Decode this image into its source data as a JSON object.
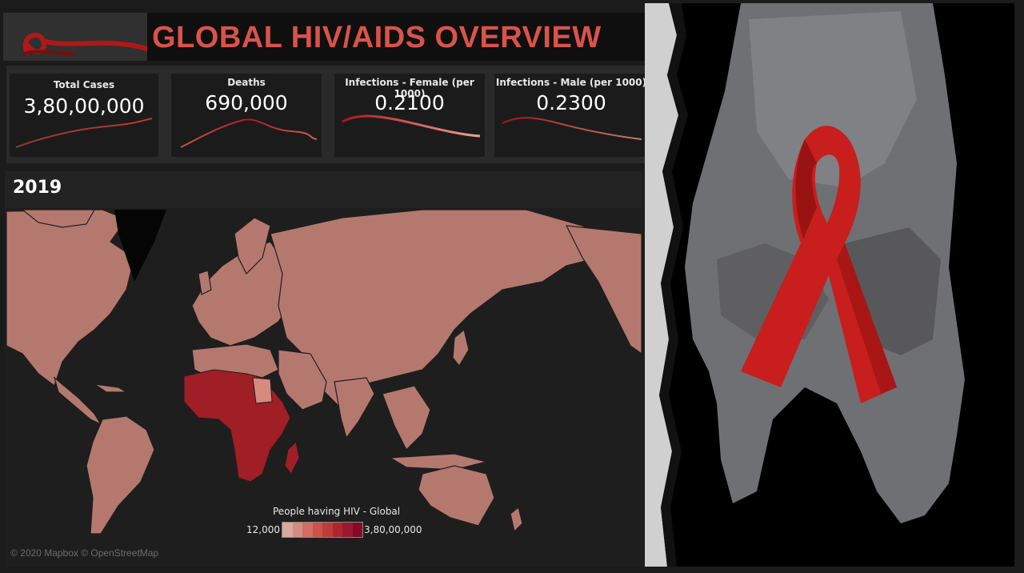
{
  "header": {
    "title": "GLOBAL HIV/AIDS OVERVIEW"
  },
  "kpis": [
    {
      "label": "Total Cases",
      "value": "3,80,00,000"
    },
    {
      "label": "Deaths",
      "value": "690,000"
    },
    {
      "label": "Infections - Female (per 1000)",
      "value": "0.2100"
    },
    {
      "label": "Infections - Male (per 1000)",
      "value": "0.2300"
    }
  ],
  "map": {
    "year": "2019",
    "legend_title": "People having HIV - Global",
    "legend_min": "12,000",
    "legend_max": "3,80,00,000",
    "attribution": "© 2020 Mapbox © OpenStreetMap",
    "colors": {
      "low": "#b5786f",
      "high": "#a01e26"
    }
  },
  "colors": {
    "title": "#d9534a",
    "ribbon": "#c81e1e"
  }
}
